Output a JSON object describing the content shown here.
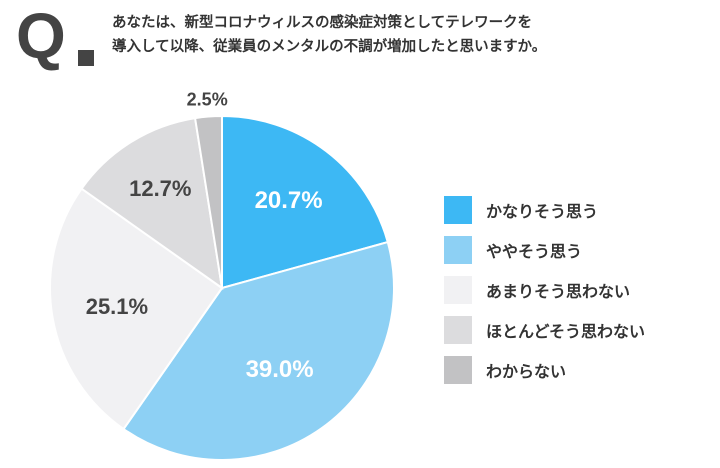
{
  "header": {
    "q_mark": "Q",
    "question_lines": [
      "あなたは、新型コロナウィルスの感染症対策としてテレワークを",
      "導入して以降、従業員のメンタルの不調が増加したと思いますか。"
    ]
  },
  "chart_data": {
    "type": "pie",
    "categories": [
      "かなりそう思う",
      "ややそう思う",
      "あまりそう思わない",
      "ほとんどそう思わない",
      "わからない"
    ],
    "values": [
      20.7,
      39.0,
      25.1,
      12.7,
      2.5
    ],
    "labels": [
      "20.7%",
      "39.0%",
      "25.1%",
      "12.7%",
      "2.5%"
    ],
    "colors": [
      "#3db8f4",
      "#8dd0f4",
      "#f1f1f3",
      "#dcdcde",
      "#c2c2c4"
    ],
    "label_colors": [
      "#ffffff",
      "#ffffff",
      "#444444",
      "#444444",
      "#444444"
    ],
    "legend_position": "right",
    "start": "12 o'clock",
    "direction": "clockwise"
  }
}
